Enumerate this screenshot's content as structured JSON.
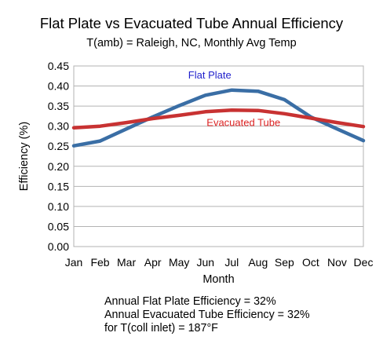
{
  "chart_data": {
    "type": "line",
    "title": "Flat Plate vs Evacuated Tube Annual Efficiency",
    "subtitle": "T(amb) = Raleigh, NC, Monthly Avg Temp",
    "xlabel": "Month",
    "ylabel": "Efficiency (%)",
    "categories": [
      "Jan",
      "Feb",
      "Mar",
      "Apr",
      "May",
      "Jun",
      "Jul",
      "Aug",
      "Sep",
      "Oct",
      "Nov",
      "Dec"
    ],
    "ylim": [
      0,
      0.45
    ],
    "yticks": [
      "0.00",
      "0.05",
      "0.10",
      "0.15",
      "0.20",
      "0.25",
      "0.30",
      "0.35",
      "0.40",
      "0.45"
    ],
    "grid": "horizontal",
    "series": [
      {
        "name": "Flat Plate",
        "color": "#3a6ea5",
        "label_color": "#1f1fcc",
        "values": [
          0.251,
          0.263,
          0.293,
          0.323,
          0.351,
          0.377,
          0.39,
          0.387,
          0.366,
          0.323,
          0.293,
          0.264
        ]
      },
      {
        "name": "Evacuated Tube",
        "color": "#c83232",
        "label_color": "#dd2222",
        "values": [
          0.296,
          0.3,
          0.309,
          0.319,
          0.327,
          0.336,
          0.34,
          0.339,
          0.331,
          0.32,
          0.309,
          0.299
        ]
      }
    ],
    "annotations": [
      "Annual Flat Plate Efficiency = 32%",
      "Annual Evacuated Tube Efficiency = 32%",
      "for T(coll inlet) = 187°F"
    ]
  }
}
